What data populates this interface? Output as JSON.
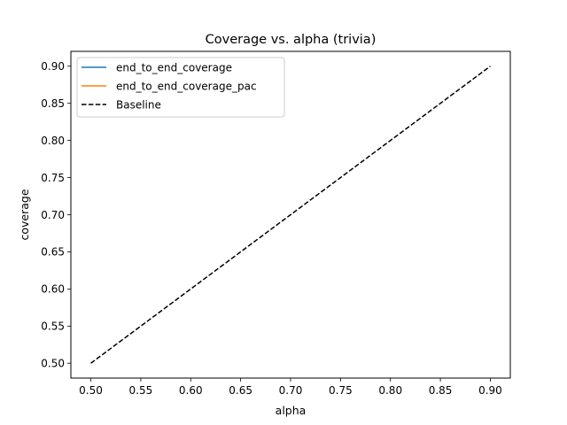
{
  "chart_data": {
    "type": "line",
    "title": "Coverage vs. alpha (trivia)",
    "xlabel": "alpha",
    "ylabel": "coverage",
    "xlim": [
      0.48,
      0.92
    ],
    "ylim": [
      0.48,
      0.92
    ],
    "xticks": [
      0.5,
      0.55,
      0.6,
      0.65,
      0.7,
      0.75,
      0.8,
      0.85,
      0.9
    ],
    "xtick_labels": [
      "0.50",
      "0.55",
      "0.60",
      "0.65",
      "0.70",
      "0.75",
      "0.80",
      "0.85",
      "0.90"
    ],
    "yticks": [
      0.5,
      0.55,
      0.6,
      0.65,
      0.7,
      0.75,
      0.8,
      0.85,
      0.9
    ],
    "ytick_labels": [
      "0.50",
      "0.55",
      "0.60",
      "0.65",
      "0.70",
      "0.75",
      "0.80",
      "0.85",
      "0.90"
    ],
    "grid": false,
    "legend_position": "top-left",
    "series": [
      {
        "name": "end_to_end_coverage",
        "color": "#1f77b4",
        "style": "solid",
        "x": [],
        "y": []
      },
      {
        "name": "end_to_end_coverage_pac",
        "color": "#ff7f0e",
        "style": "solid",
        "x": [],
        "y": []
      },
      {
        "name": "Baseline",
        "color": "#000000",
        "style": "dashed",
        "x": [
          0.5,
          0.9
        ],
        "y": [
          0.5,
          0.9
        ]
      }
    ]
  }
}
